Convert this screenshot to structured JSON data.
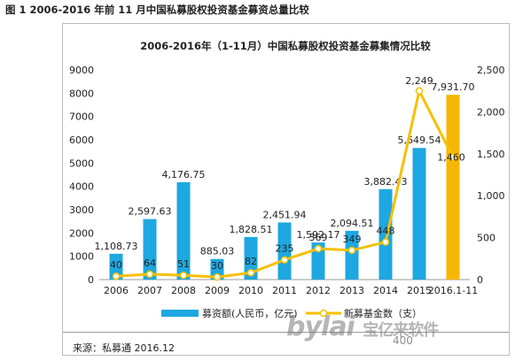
{
  "caption": "图 1 2006-2016 年前 11 月中国私募股权投资基金募资总量比较",
  "source": "来源：私募通 2016.12",
  "watermark": {
    "brand": "bylai",
    "slogan": "宝亿来软件",
    "phone": "400"
  },
  "colors": {
    "bar": "#1ea7e0",
    "bar_highlight": "#f6b600",
    "line": "#f5c000",
    "marker_fill": "#ffffff"
  },
  "chart_data": {
    "type": "bar",
    "title": "2006-2016年（1-11月）中国私募股权投资基金募集情况比较",
    "categories": [
      "2006",
      "2007",
      "2008",
      "2009",
      "2010",
      "2011",
      "2012",
      "2013",
      "2014",
      "2015",
      "2016.1-11"
    ],
    "series": [
      {
        "name": "募资额(人民币，亿元)",
        "type": "bar",
        "axis": "left",
        "values": [
          1108.73,
          2597.63,
          4176.75,
          885.03,
          1828.51,
          2451.94,
          1592.17,
          2094.51,
          3882.43,
          5649.54,
          7931.7
        ],
        "labels": [
          "1,108.73",
          "2,597.63",
          "4,176.75",
          "885.03",
          "1,828.51",
          "2,451.94",
          "1,592.17",
          "2,094.51",
          "3,882.43",
          "5,649.54",
          "7,931.70"
        ]
      },
      {
        "name": "新募基金数（支）",
        "type": "line",
        "axis": "right",
        "values": [
          40,
          64,
          51,
          30,
          82,
          235,
          369,
          349,
          448,
          2249,
          1460
        ],
        "labels": [
          "40",
          "64",
          "51",
          "30",
          "82",
          "235",
          "369",
          "349",
          "448",
          "2,249",
          "1,460"
        ]
      }
    ],
    "ylim_left": [
      0,
      9000
    ],
    "yticks_left": [
      "0",
      "1000",
      "2000",
      "3000",
      "4000",
      "5000",
      "6000",
      "7000",
      "8000",
      "9000"
    ],
    "ylim_right": [
      0,
      2500
    ],
    "yticks_right": [
      "0",
      "500",
      "1,000",
      "1,500",
      "2,000",
      "2,500"
    ],
    "grid": false,
    "legend": "bottom"
  }
}
